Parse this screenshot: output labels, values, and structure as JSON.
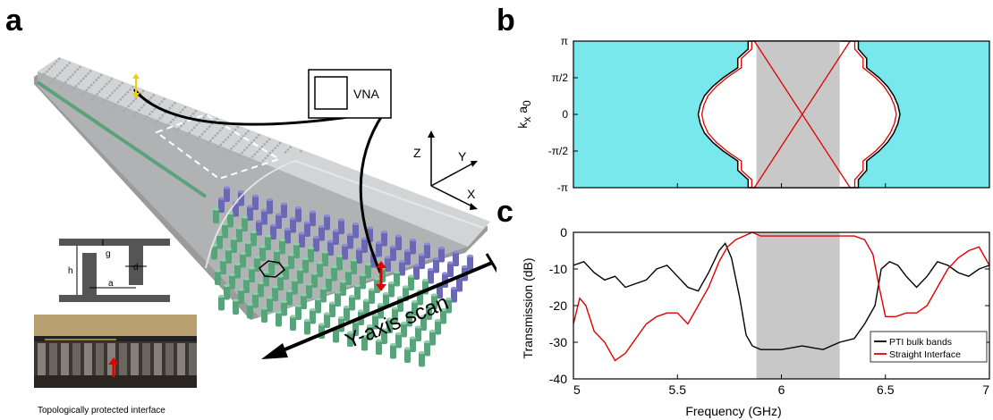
{
  "panels": {
    "a": "a",
    "b": "b",
    "c": "c"
  },
  "schematic": {
    "instrument_label": "VNA",
    "axes": {
      "z": "Z",
      "y": "Y",
      "x": "X"
    },
    "scan_label": "Y-axis scan",
    "unit_cell_labels": {
      "g": "g",
      "h": "h",
      "a": "a",
      "d": "d"
    },
    "photo_caption": "Topologically protected interface"
  },
  "colors": {
    "bulk_band": "#78e8ec",
    "bandgap_shade": "#c8c8c8",
    "pti_bulk": "#000000",
    "straight_interface": "#e00000",
    "rods_green": "#5aa27c",
    "rods_purple": "#6a68b0"
  },
  "chart_data": [
    {
      "type": "band_diagram",
      "ylabel": "k",
      "ylabel_sub1": "x",
      "ylabel_mid": " a",
      "ylabel_sub2": "0",
      "yticks": [
        "π",
        "π/2",
        "0",
        "-π/2",
        "-π"
      ],
      "xlim": [
        5,
        7
      ],
      "ylim": [
        -3.1416,
        3.1416
      ],
      "gap_shade": [
        5.88,
        6.28
      ],
      "bulk_band_edges": {
        "k": [
          -3.1416,
          -2.8,
          -2.4,
          -2.0,
          -1.57,
          -1.2,
          -0.8,
          -0.4,
          0,
          0.4,
          0.8,
          1.2,
          1.57,
          2.0,
          2.4,
          2.8,
          3.1416
        ],
        "lower_f": [
          5.84,
          5.84,
          5.79,
          5.79,
          5.72,
          5.67,
          5.63,
          5.61,
          5.6,
          5.61,
          5.63,
          5.67,
          5.72,
          5.79,
          5.79,
          5.84,
          5.84
        ],
        "upper_f": [
          6.37,
          6.37,
          6.41,
          6.41,
          6.47,
          6.51,
          6.54,
          6.56,
          6.57,
          6.56,
          6.54,
          6.51,
          6.47,
          6.41,
          6.41,
          6.37,
          6.37
        ]
      },
      "edge_states": [
        {
          "name": "",
          "k": [
            -3.1416,
            3.1416
          ],
          "f": [
            5.87,
            6.33
          ]
        },
        {
          "name": "",
          "k": [
            -3.1416,
            3.1416
          ],
          "f": [
            6.33,
            5.87
          ]
        }
      ]
    },
    {
      "type": "line",
      "xlabel": "Frequency (GHz)",
      "ylabel": "Transmission (dB)",
      "xlim": [
        5,
        7
      ],
      "ylim": [
        -40,
        0
      ],
      "xticks": [
        "5",
        "5.5",
        "6",
        "6.5",
        "7"
      ],
      "yticks": [
        "0",
        "-10",
        "-20",
        "-30",
        "-40"
      ],
      "gap_shade": [
        5.88,
        6.28
      ],
      "legend_position": "bottom-right",
      "series": [
        {
          "name": "PTI bulk bands",
          "x": [
            5.0,
            5.05,
            5.1,
            5.15,
            5.2,
            5.25,
            5.3,
            5.35,
            5.4,
            5.45,
            5.5,
            5.55,
            5.6,
            5.65,
            5.7,
            5.73,
            5.76,
            5.8,
            5.83,
            5.86,
            5.9,
            6.0,
            6.1,
            6.2,
            6.28,
            6.35,
            6.4,
            6.45,
            6.48,
            6.52,
            6.56,
            6.6,
            6.65,
            6.7,
            6.75,
            6.8,
            6.85,
            6.9,
            6.95,
            7.0
          ],
          "y": [
            -9,
            -8,
            -11,
            -13,
            -12,
            -15,
            -14,
            -13,
            -10,
            -9,
            -12,
            -15,
            -16,
            -11,
            -5,
            -3,
            -7,
            -18,
            -28,
            -31,
            -32,
            -32,
            -31,
            -32,
            -30,
            -29,
            -25,
            -20,
            -10,
            -8,
            -9,
            -12,
            -15,
            -12,
            -8,
            -9,
            -11,
            -12,
            -10,
            -9
          ]
        },
        {
          "name": "Straight Interface",
          "x": [
            5.0,
            5.03,
            5.06,
            5.1,
            5.15,
            5.2,
            5.25,
            5.3,
            5.35,
            5.4,
            5.45,
            5.5,
            5.55,
            5.6,
            5.65,
            5.7,
            5.74,
            5.78,
            5.82,
            5.86,
            5.9,
            6.0,
            6.1,
            6.2,
            6.28,
            6.35,
            6.4,
            6.44,
            6.47,
            6.5,
            6.55,
            6.6,
            6.65,
            6.7,
            6.75,
            6.8,
            6.85,
            6.9,
            6.95,
            7.0
          ],
          "y": [
            -25,
            -18,
            -20,
            -27,
            -30,
            -35,
            -33,
            -29,
            -25,
            -23,
            -22,
            -22,
            -25,
            -20,
            -15,
            -8,
            -4,
            -2,
            -1,
            0,
            -1,
            -1,
            -1,
            -1,
            -1,
            -1,
            -2,
            -6,
            -15,
            -23,
            -23,
            -22,
            -22,
            -20,
            -15,
            -10,
            -7,
            -5,
            -4,
            -9
          ]
        }
      ]
    }
  ]
}
